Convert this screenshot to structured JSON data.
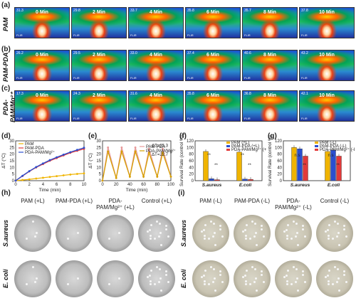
{
  "panels": {
    "a": "(a)",
    "b": "(b)",
    "c": "(c)",
    "d": "(d)",
    "e": "(e)",
    "f": "(f)",
    "g": "(g)",
    "h": "(h)",
    "i": "(i)"
  },
  "thermal_rows": [
    {
      "label": "PAM",
      "temps": [
        "31.3",
        "29.8",
        "33.7",
        "35.8",
        "35.7",
        "37.8"
      ]
    },
    {
      "label": "PAM-PDA",
      "temps": [
        "26.2",
        "29.5",
        "33.0",
        "37.4",
        "40.6",
        "43.2"
      ]
    },
    {
      "label": "PDA-PAM/Mg²⁺",
      "temps": [
        "17.3",
        "24.3",
        "31.6",
        "35.8",
        "36.8",
        "42.1"
      ]
    }
  ],
  "thermal_times": [
    "0 Min",
    "2 Min",
    "4 Min",
    "6 Min",
    "8 Min",
    "10 Min"
  ],
  "thermal_logo": "FLIR",
  "chart_d": {
    "type": "line",
    "series": [
      {
        "name": "PAM",
        "color": "#f0b400",
        "x": [
          0,
          1,
          2,
          3,
          4,
          5,
          6,
          7,
          8,
          9,
          10
        ],
        "y": [
          0,
          0.5,
          1.0,
          1.6,
          2.2,
          2.8,
          3.4,
          4.0,
          4.6,
          5.1,
          5.5
        ]
      },
      {
        "name": "PAM-PDA",
        "color": "#e23a3a",
        "x": [
          0,
          1,
          2,
          3,
          4,
          5,
          6,
          7,
          8,
          9,
          10
        ],
        "y": [
          0,
          3.5,
          7,
          10,
          12.5,
          15,
          17,
          19,
          21,
          22.5,
          24
        ]
      },
      {
        "name": "PDA-PAM/Mg²⁺",
        "color": "#2a4fd0",
        "x": [
          0,
          1,
          2,
          3,
          4,
          5,
          6,
          7,
          8,
          9,
          10
        ],
        "y": [
          0,
          3.7,
          7.2,
          10.3,
          13,
          15.5,
          17.6,
          19.6,
          21.5,
          23.2,
          24.8
        ]
      }
    ],
    "xlabel": "Time (min)",
    "ylabel": "ΔT (°C)",
    "xlim": [
      0,
      10
    ],
    "ylim": [
      0,
      30
    ],
    "xticks": [
      "0",
      "2",
      "4",
      "6",
      "8",
      "10"
    ],
    "yticks": [
      "0",
      "5",
      "10",
      "15",
      "20",
      "25",
      "30"
    ]
  },
  "chart_e": {
    "type": "line",
    "series": [
      {
        "name": "PAM-PDA",
        "color": "#e79a9a",
        "x": [
          0,
          8,
          20,
          28,
          40,
          48,
          60,
          68,
          80,
          88,
          100
        ],
        "y": [
          0,
          25,
          2,
          25,
          3,
          25,
          3,
          24,
          3,
          24,
          3
        ]
      },
      {
        "name": "PDA-PAM/Mg²⁺",
        "color": "#d6a000",
        "x": [
          0,
          8,
          20,
          28,
          40,
          48,
          60,
          68,
          80,
          88,
          100
        ],
        "y": [
          0,
          22,
          2,
          22,
          3,
          22,
          3,
          21,
          3,
          21,
          3
        ]
      }
    ],
    "annotations": [
      "ΔT=25.3",
      "ΔT=22.7"
    ],
    "xlabel": "Time (min)",
    "ylabel": "ΔT (°C)",
    "xlim": [
      0,
      100
    ],
    "ylim": [
      0,
      30
    ],
    "xticks": [
      "0",
      "20",
      "40",
      "60",
      "80",
      "100"
    ],
    "yticks": [
      "0",
      "5",
      "10",
      "15",
      "20",
      "25",
      "30"
    ]
  },
  "chart_f": {
    "type": "bar",
    "categories": [
      "S.aureus",
      "E.coli"
    ],
    "series": [
      {
        "name": "PAM (+L)",
        "color": "#f0b400",
        "values": [
          88,
          86
        ]
      },
      {
        "name": "PAM-PDA (+L)",
        "color": "#2a4fd0",
        "values": [
          6,
          5
        ]
      },
      {
        "name": "PDA-PAM/Mg²⁺ (+L)",
        "color": "#e23a3a",
        "values": [
          3,
          4
        ]
      }
    ],
    "ylabel": "Survival Rate (control %)",
    "ylim": [
      0,
      120
    ],
    "yticks": [
      "0",
      "20",
      "40",
      "60",
      "80",
      "100",
      "120"
    ],
    "sig": [
      "**",
      "**",
      "**",
      "**"
    ]
  },
  "chart_g": {
    "type": "bar",
    "categories": [
      "S.aureus",
      "E.coli"
    ],
    "series": [
      {
        "name": "PAM (-L)",
        "color": "#f0b400",
        "values": [
          100,
          88
        ]
      },
      {
        "name": "PAM-PDA (-L)",
        "color": "#2a4fd0",
        "values": [
          96,
          92
        ]
      },
      {
        "name": "PDA-PAM/Mg²⁺ (-L)",
        "color": "#e23a3a",
        "values": [
          74,
          74
        ]
      }
    ],
    "ylabel": "Survival Rate (control %)",
    "ylim": [
      0,
      120
    ],
    "yticks": [
      "0",
      "20",
      "40",
      "60",
      "80",
      "100",
      "120"
    ],
    "sig": [
      "n.s",
      "**",
      "n.s",
      "**"
    ]
  },
  "dishes_h": {
    "columns": [
      "PAM (+L)",
      "PAM-PDA (+L)",
      "PDA-PAM/Mg²⁺ (+L)",
      "Control (+L)"
    ],
    "rows": [
      "S.aureus",
      "E. coli"
    ]
  },
  "dishes_i": {
    "columns": [
      "PAM (-L)",
      "PAM-PDA (-L)",
      "PDA-PAM/Mg²⁺ (-L)",
      "Control (-L)"
    ],
    "rows": [
      "S.aureus",
      "E. coli"
    ]
  }
}
